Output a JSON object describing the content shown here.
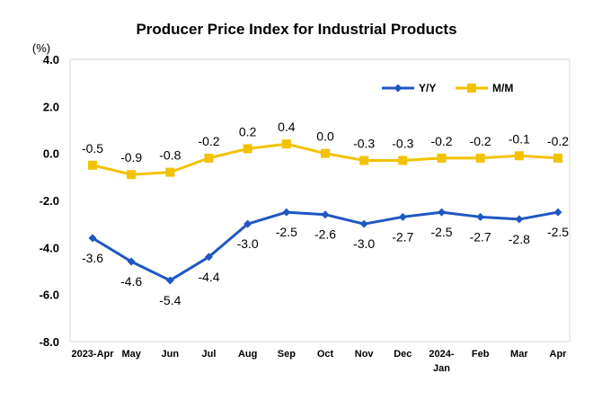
{
  "chart_data": {
    "type": "line",
    "title": "Producer Price Index for Industrial Products",
    "ylabel": "(%)",
    "xlabel": "",
    "categories": [
      [
        "2023-Apr"
      ],
      [
        "May"
      ],
      [
        "Jun"
      ],
      [
        "Jul"
      ],
      [
        "Aug"
      ],
      [
        "Sep"
      ],
      [
        "Oct"
      ],
      [
        "Nov"
      ],
      [
        "Dec"
      ],
      [
        "2024-",
        "Jan"
      ],
      [
        "Feb"
      ],
      [
        "Mar"
      ],
      [
        "Apr"
      ]
    ],
    "ylim": [
      -8.0,
      4.0
    ],
    "yticks": [
      4.0,
      2.0,
      0.0,
      -2.0,
      -4.0,
      -6.0,
      -8.0
    ],
    "ytick_labels": [
      "4.0",
      "2.0",
      "0.0",
      "-2.0",
      "-4.0",
      "-6.0",
      "-8.0"
    ],
    "grid": false,
    "legend_position": "top-right",
    "series": [
      {
        "name": "Y/Y",
        "color": "#1f57c3",
        "marker": "diamond",
        "label_position": "below",
        "values": [
          -3.6,
          -4.6,
          -5.4,
          -4.4,
          -3.0,
          -2.5,
          -2.6,
          -3.0,
          -2.7,
          -2.5,
          -2.7,
          -2.8,
          -2.5
        ],
        "labels": [
          "-3.6",
          "-4.6",
          "-5.4",
          "-4.4",
          "-3.0",
          "-2.5",
          "-2.6",
          "-3.0",
          "-2.7",
          "-2.5",
          "-2.7",
          "-2.8",
          "-2.5"
        ]
      },
      {
        "name": "M/M",
        "color": "#f2c200",
        "marker": "square",
        "label_position": "above",
        "values": [
          -0.5,
          -0.9,
          -0.8,
          -0.2,
          0.2,
          0.4,
          0.0,
          -0.3,
          -0.3,
          -0.2,
          -0.2,
          -0.1,
          -0.2
        ],
        "labels": [
          "-0.5",
          "-0.9",
          "-0.8",
          "-0.2",
          "0.2",
          "0.4",
          "0.0",
          "-0.3",
          "-0.3",
          "-0.2",
          "-0.2",
          "-0.1",
          "-0.2"
        ]
      }
    ]
  }
}
